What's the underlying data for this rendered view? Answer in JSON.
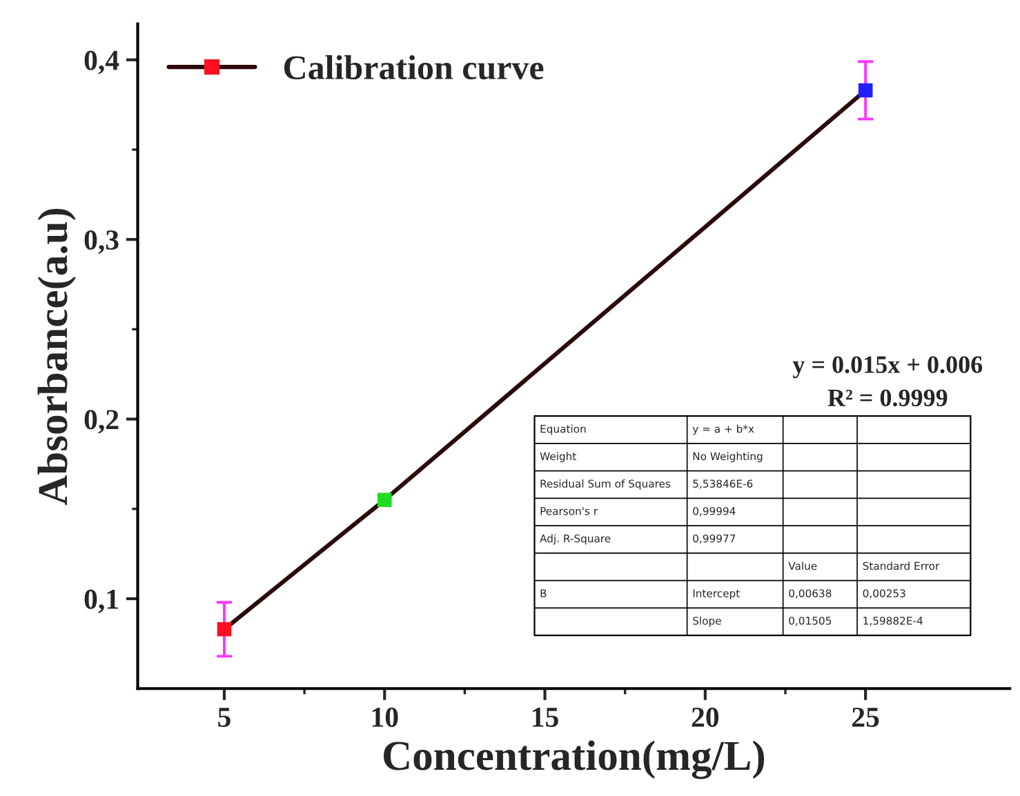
{
  "chart_data": {
    "type": "line",
    "xlabel": "Concentration(mg/L)",
    "ylabel": "Absorbance(a.u)",
    "x": [
      5,
      10,
      25
    ],
    "series": [
      {
        "name": "Calibration curve",
        "color": "#2b0a0a",
        "colors": [
          "#ff1020",
          "#20dd20",
          "#2020ff"
        ],
        "values": [
          0.083,
          0.155,
          0.383
        ],
        "errors": [
          0.015,
          null,
          0.016
        ]
      }
    ],
    "xlim": [
      2.3,
      29.5
    ],
    "xticks": [
      5,
      10,
      15,
      20,
      25
    ],
    "ylim": [
      0.05,
      0.42
    ],
    "yticks": [
      {
        "value": 0.1,
        "label": "0,1"
      },
      {
        "value": 0.2,
        "label": "0,2"
      },
      {
        "value": 0.3,
        "label": "0,3"
      },
      {
        "value": 0.4,
        "label": "0,4"
      }
    ],
    "marker": "square",
    "line_style": "solid",
    "legend": "top left",
    "grid": false,
    "annotations": [
      "y = 0.015x + 0.006",
      "R² = 0.9999",
      "Equation",
      "y = a + b*x",
      "Weight",
      "No Weighting",
      "Residual Sum of Squares",
      "5,53846E-6",
      "Pearson's r",
      "0,99994",
      "Adj. R-Square",
      "0,99977",
      "Value",
      "Standard Error",
      "B",
      "Intercept",
      "0,00638",
      "0,00253",
      "Slope",
      "0,01505",
      "1,59882E-4"
    ]
  }
}
